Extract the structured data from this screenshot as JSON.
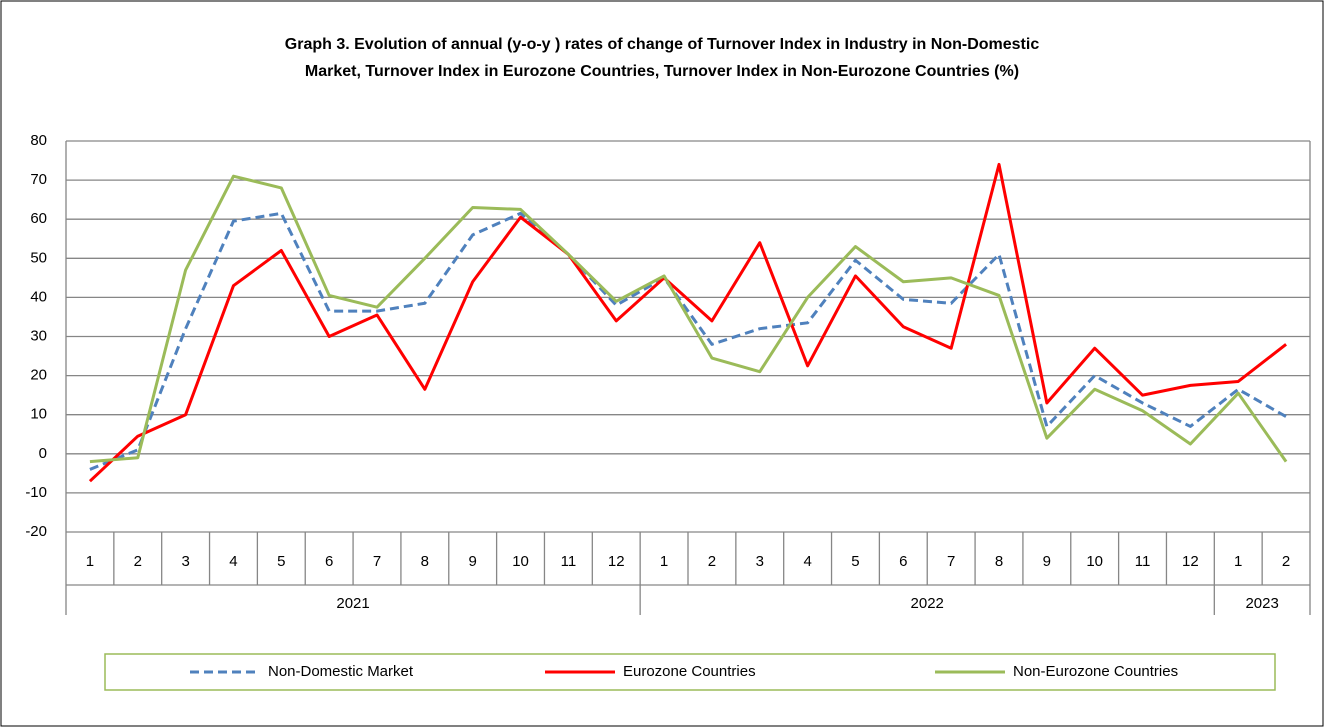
{
  "chart_data": {
    "type": "line",
    "title_lines": [
      "Graph 3. Evolution  of annual (y-o-y ) rates of change of Turnover Index  in Industry in Non-Domestic",
      "Market, Turnover  Index  in Eurozone  Countries,  Turnover  Index  in Non-Eurozone  Countries  (%)"
    ],
    "categories": [
      "1",
      "2",
      "3",
      "4",
      "5",
      "6",
      "7",
      "8",
      "9",
      "10",
      "11",
      "12",
      "1",
      "2",
      "3",
      "4",
      "5",
      "6",
      "7",
      "8",
      "9",
      "10",
      "11",
      "12",
      "1",
      "2"
    ],
    "category_groups": [
      {
        "label": "2021",
        "count": 12
      },
      {
        "label": "2022",
        "count": 12
      },
      {
        "label": "2023",
        "count": 2
      }
    ],
    "ylim": [
      -20,
      80
    ],
    "yticks": [
      -20,
      -10,
      0,
      10,
      20,
      30,
      40,
      50,
      60,
      70,
      80
    ],
    "grid": true,
    "series": [
      {
        "name": "Non-Domestic Market",
        "color": "#4f81bd",
        "dashed": true,
        "values": [
          -4,
          1,
          32,
          59.5,
          61.5,
          36.5,
          36.5,
          38.5,
          56,
          61.5,
          51,
          38,
          45,
          28,
          32,
          33.5,
          49.5,
          39.5,
          38.5,
          51,
          7,
          20,
          13,
          7,
          16.5,
          9.5
        ]
      },
      {
        "name": "Eurozone Countries",
        "color": "#ff0000",
        "dashed": false,
        "values": [
          -7,
          4.5,
          10,
          43,
          52,
          30,
          35.5,
          16.5,
          44,
          60.5,
          51,
          34,
          45,
          34,
          54,
          22.5,
          45.5,
          32.5,
          27,
          74,
          13,
          27,
          15,
          17.5,
          18.5,
          28
        ]
      },
      {
        "name": "Non-Eurozone Countries",
        "color": "#9bbb59",
        "dashed": false,
        "values": [
          -2,
          -1,
          47,
          71,
          68,
          40.5,
          37.5,
          50,
          63,
          62.5,
          51,
          39,
          45.5,
          24.5,
          21,
          40,
          53,
          44,
          45,
          40.5,
          4,
          16.5,
          11,
          2.5,
          15.5,
          -2
        ]
      }
    ]
  }
}
